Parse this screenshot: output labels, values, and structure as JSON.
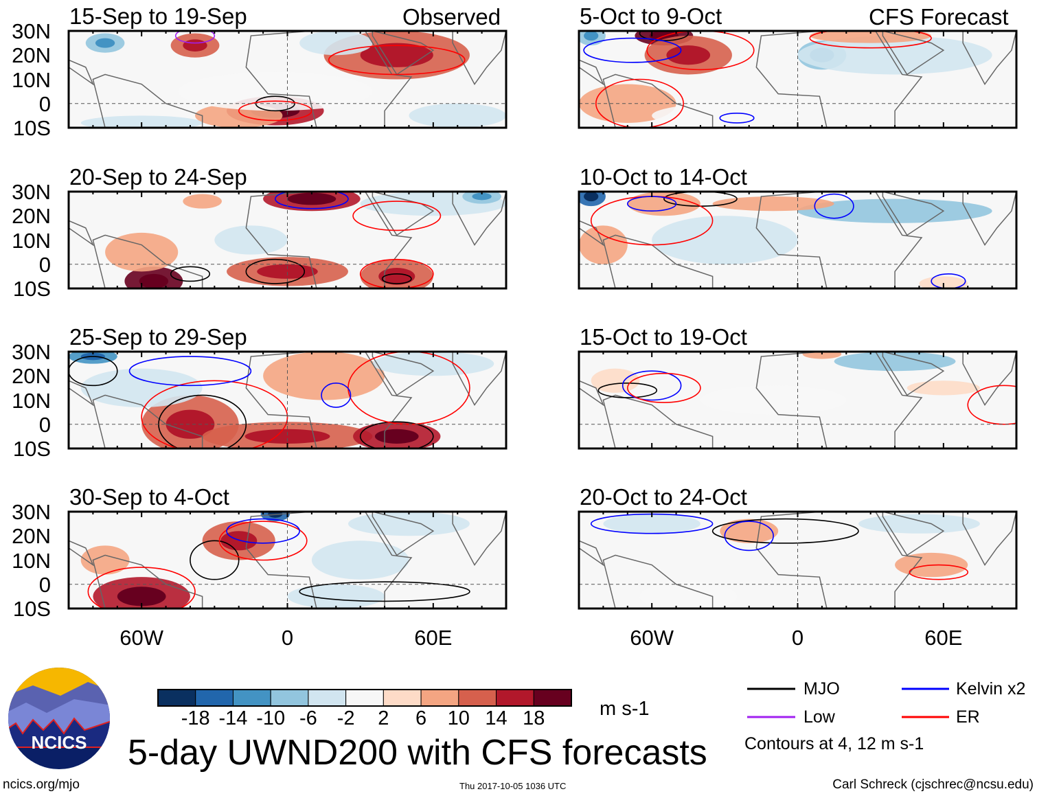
{
  "title": "5-day UWND200 with CFS forecasts",
  "footer": {
    "site": "ncics.org/mjo",
    "timestamp": "Thu 2017-10-05 1036 UTC",
    "author": "Carl Schreck (cjschrec@ncsu.edu)",
    "logo_text": "NCICS"
  },
  "column_labels": {
    "observed": "Observed",
    "forecast": "CFS Forecast"
  },
  "units": "m s-1",
  "legend": {
    "items": [
      {
        "label": "MJO",
        "color": "#000000"
      },
      {
        "label": "Kelvin x2",
        "color": "#0000ff"
      },
      {
        "label": "Low",
        "color": "#a020f0"
      },
      {
        "label": "ER",
        "color": "#ff0000"
      }
    ],
    "note": "Contours at 4, 12 m s-1"
  },
  "colorbar": {
    "colors": [
      "#0a3060",
      "#2166ac",
      "#4393c3",
      "#92c5de",
      "#d1e5f0",
      "#f7f7f7",
      "#fddbc7",
      "#f4a582",
      "#d6604d",
      "#b2182b",
      "#67001f"
    ],
    "ticks": [
      "-18",
      "-14",
      "-10",
      "-6",
      "-2",
      "2",
      "6",
      "10",
      "14",
      "18"
    ]
  },
  "chart_data": {
    "type": "heatmap",
    "variable": "200-hPa zonal wind anomaly",
    "lat_ticks": [
      "30N",
      "20N",
      "10N",
      "0",
      "10S"
    ],
    "lon_ticks": [
      "60W",
      "0",
      "60E"
    ],
    "lat_range": [
      -10,
      30
    ],
    "lon_range": [
      -90,
      90
    ],
    "panels": [
      {
        "title": "15-Sep to 19-Sep",
        "column": "observed",
        "features": [
          [
            -75,
            25,
            -10,
            8,
            4
          ],
          [
            -38,
            24,
            10,
            10,
            5
          ],
          [
            -5,
            -3,
            14,
            20,
            6
          ],
          [
            -20,
            -5,
            8,
            18,
            5
          ],
          [
            45,
            20,
            10,
            30,
            10
          ],
          [
            20,
            25,
            -6,
            15,
            5
          ],
          [
            70,
            -5,
            -6,
            20,
            5
          ],
          [
            -60,
            -8,
            -6,
            25,
            3
          ],
          [
            -5,
            5,
            -2,
            40,
            8
          ]
        ],
        "contours": [
          [
            -5,
            0,
            8,
            3,
            "#000000"
          ],
          [
            -38,
            28,
            8,
            3,
            "#a020f0"
          ],
          [
            45,
            18,
            28,
            6,
            "#ff0000"
          ],
          [
            -5,
            -3,
            15,
            4,
            "#ff0000"
          ]
        ]
      },
      {
        "title": "20-Sep to 24-Sep",
        "column": "observed",
        "features": [
          [
            -55,
            -7,
            18,
            12,
            6
          ],
          [
            -35,
            26,
            8,
            8,
            3
          ],
          [
            10,
            27,
            14,
            20,
            5
          ],
          [
            45,
            -5,
            12,
            15,
            7
          ],
          [
            -60,
            5,
            6,
            15,
            8
          ],
          [
            0,
            -3,
            10,
            25,
            6
          ],
          [
            -15,
            10,
            -4,
            15,
            6
          ],
          [
            60,
            25,
            -6,
            30,
            5
          ],
          [
            80,
            28,
            -10,
            8,
            3
          ]
        ],
        "contours": [
          [
            -40,
            -4,
            8,
            3,
            "#000000"
          ],
          [
            -5,
            -3,
            12,
            5,
            "#000000"
          ],
          [
            45,
            -6,
            6,
            2,
            "#000000"
          ],
          [
            45,
            20,
            18,
            6,
            "#ff0000"
          ],
          [
            45,
            -4,
            15,
            6,
            "#ff0000"
          ],
          [
            10,
            27,
            15,
            4,
            "#0000ff"
          ]
        ]
      },
      {
        "title": "25-Sep to 29-Sep",
        "column": "observed",
        "features": [
          [
            -40,
            0,
            10,
            20,
            12
          ],
          [
            0,
            -5,
            10,
            35,
            6
          ],
          [
            45,
            -5,
            16,
            18,
            6
          ],
          [
            -80,
            28,
            -14,
            10,
            3
          ],
          [
            15,
            20,
            6,
            25,
            10
          ],
          [
            -60,
            15,
            -4,
            25,
            8
          ],
          [
            60,
            25,
            -4,
            25,
            5
          ]
        ],
        "contours": [
          [
            -35,
            0,
            18,
            12,
            "#000000"
          ],
          [
            45,
            -5,
            15,
            6,
            "#000000"
          ],
          [
            -80,
            22,
            10,
            6,
            "#000000"
          ],
          [
            -30,
            3,
            30,
            15,
            "#ff0000"
          ],
          [
            50,
            15,
            25,
            15,
            "#ff0000"
          ],
          [
            20,
            12,
            6,
            5,
            "#0000ff"
          ],
          [
            -40,
            22,
            25,
            6,
            "#0000ff"
          ]
        ]
      },
      {
        "title": "30-Sep to 4-Oct",
        "column": "observed",
        "features": [
          [
            -60,
            -5,
            14,
            20,
            8
          ],
          [
            -20,
            18,
            10,
            15,
            8
          ],
          [
            -5,
            29,
            -18,
            6,
            3
          ],
          [
            -75,
            10,
            8,
            10,
            6
          ],
          [
            30,
            10,
            -6,
            20,
            8
          ],
          [
            50,
            25,
            -4,
            25,
            5
          ],
          [
            20,
            -5,
            -4,
            20,
            5
          ]
        ],
        "contours": [
          [
            -30,
            10,
            10,
            8,
            "#000000"
          ],
          [
            40,
            -3,
            35,
            4,
            "#000000"
          ],
          [
            -10,
            18,
            18,
            8,
            "#ff0000"
          ],
          [
            -60,
            -3,
            22,
            10,
            "#ff0000"
          ],
          [
            -10,
            22,
            15,
            5,
            "#0000ff"
          ]
        ]
      },
      {
        "title": "5-Oct to 9-Oct",
        "column": "forecast",
        "features": [
          [
            -55,
            28,
            18,
            12,
            4
          ],
          [
            -45,
            20,
            10,
            18,
            8
          ],
          [
            -85,
            28,
            -10,
            6,
            4
          ],
          [
            10,
            20,
            -10,
            10,
            6
          ],
          [
            -70,
            0,
            6,
            20,
            8
          ],
          [
            40,
            20,
            -4,
            40,
            8
          ],
          [
            30,
            28,
            8,
            25,
            3
          ],
          [
            -30,
            -5,
            -2,
            30,
            5
          ]
        ],
        "contours": [
          [
            -55,
            29,
            10,
            3,
            "#000000"
          ],
          [
            -40,
            22,
            22,
            8,
            "#ff0000"
          ],
          [
            30,
            27,
            25,
            4,
            "#ff0000"
          ],
          [
            -65,
            0,
            18,
            10,
            "#ff0000"
          ],
          [
            -68,
            22,
            20,
            5,
            "#0000ff"
          ],
          [
            -25,
            -6,
            7,
            2,
            "#0000ff"
          ]
        ]
      },
      {
        "title": "10-Oct to 14-Oct",
        "column": "forecast",
        "features": [
          [
            -85,
            28,
            -18,
            6,
            4
          ],
          [
            -55,
            25,
            8,
            15,
            5
          ],
          [
            -80,
            8,
            6,
            10,
            8
          ],
          [
            -30,
            10,
            -4,
            30,
            10
          ],
          [
            40,
            22,
            -8,
            40,
            5
          ],
          [
            -10,
            25,
            6,
            25,
            3
          ],
          [
            60,
            -8,
            4,
            10,
            3
          ]
        ],
        "contours": [
          [
            -40,
            27,
            15,
            3,
            "#000000"
          ],
          [
            -60,
            18,
            25,
            10,
            "#ff0000"
          ],
          [
            15,
            24,
            8,
            5,
            "#0000ff"
          ],
          [
            -60,
            25,
            10,
            3,
            "#0000ff"
          ],
          [
            62,
            -7,
            7,
            3,
            "#0000ff"
          ]
        ]
      },
      {
        "title": "15-Oct to 19-Oct",
        "column": "forecast",
        "features": [
          [
            40,
            26,
            -8,
            25,
            4
          ],
          [
            60,
            15,
            4,
            15,
            3
          ],
          [
            -75,
            18,
            4,
            10,
            5
          ],
          [
            -10,
            10,
            -2,
            30,
            6
          ],
          [
            10,
            29,
            6,
            8,
            2
          ]
        ],
        "contours": [
          [
            -70,
            14,
            12,
            3,
            "#000000"
          ],
          [
            -60,
            16,
            12,
            6,
            "#0000ff"
          ],
          [
            -55,
            15,
            15,
            6,
            "#ff0000"
          ],
          [
            85,
            8,
            15,
            8,
            "#ff0000"
          ]
        ]
      },
      {
        "title": "20-Oct to 24-Oct",
        "column": "forecast",
        "features": [
          [
            -20,
            22,
            6,
            12,
            5
          ],
          [
            55,
            8,
            6,
            15,
            5
          ],
          [
            -60,
            25,
            -4,
            20,
            4
          ],
          [
            50,
            25,
            -6,
            25,
            4
          ],
          [
            -45,
            -5,
            -2,
            20,
            6
          ]
        ],
        "contours": [
          [
            -5,
            22,
            30,
            5,
            "#000000"
          ],
          [
            -20,
            20,
            10,
            6,
            "#0000ff"
          ],
          [
            58,
            5,
            12,
            3,
            "#ff0000"
          ],
          [
            -60,
            25,
            25,
            4,
            "#0000ff"
          ]
        ]
      }
    ]
  }
}
